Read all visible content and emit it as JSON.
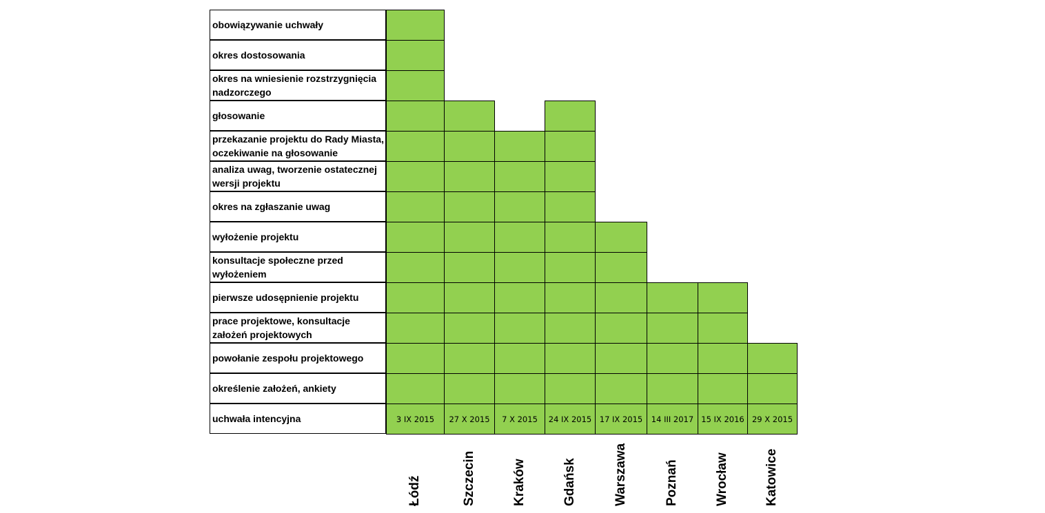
{
  "chart_data": {
    "type": "table",
    "stages": [
      "obowiązywanie uchwały",
      "okres dostosowania",
      "okres na wniesienie rozstrzygnięcia  nadzorczego",
      "głosowanie",
      "przekazanie projektu do Rady Miasta, oczekiwanie na głosowanie",
      "analiza uwag, tworzenie ostatecznej wersji projektu",
      "okres na zgłaszanie uwag",
      "wyłożenie projektu",
      "konsultacje społeczne przed wyłożeniem",
      "pierwsze udosępnienie projektu",
      "prace projektowe, konsultacje założeń projektowych",
      "powołanie zespołu projektowego",
      "określenie założeń, ankiety",
      "uchwała intencyjna"
    ],
    "cities": [
      {
        "name": "Łódź",
        "date": "3 IX 2015",
        "stages_completed": 13
      },
      {
        "name": "Szczecin",
        "date": "27 X 2015",
        "stages_completed": 10
      },
      {
        "name": "Kraków",
        "date": "7 X 2015",
        "stages_completed": 9
      },
      {
        "name": "Gdańsk",
        "date": "24 IX  2015",
        "stages_completed": 10
      },
      {
        "name": "Warszawa",
        "date": "17 IX 2015",
        "stages_completed": 6
      },
      {
        "name": "Poznań",
        "date": "14 III 2017",
        "stages_completed": 4
      },
      {
        "name": "Wrocław",
        "date": "15 IX 2016",
        "stages_completed": 4
      },
      {
        "name": "Katowice",
        "date": "29 X 2015",
        "stages_completed": 2
      }
    ],
    "colors": {
      "filled": "#92d050",
      "border": "#000000"
    }
  }
}
